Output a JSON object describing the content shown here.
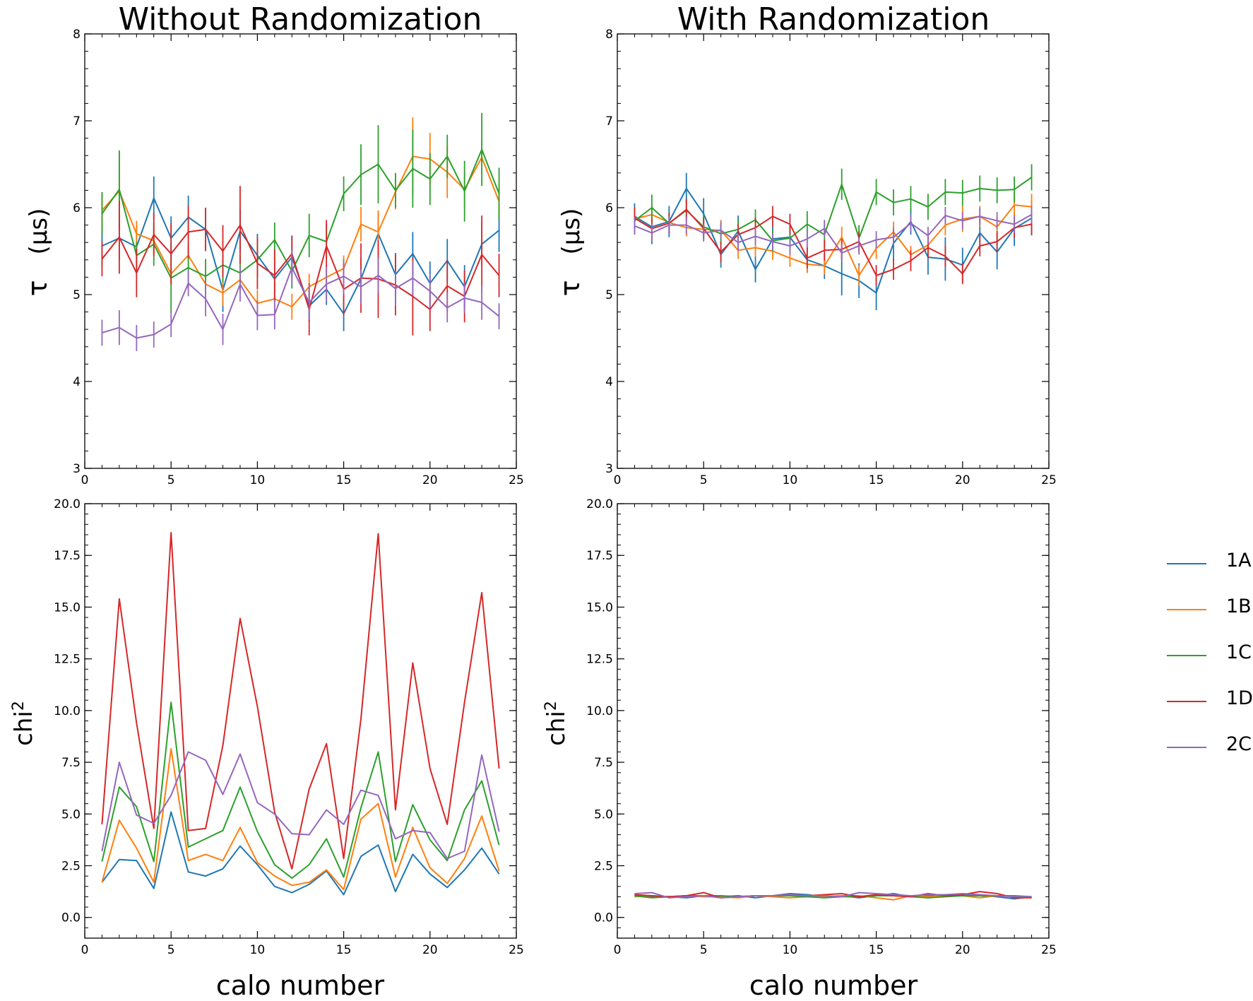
{
  "figure": {
    "colors": {
      "1A": "#1f77b4",
      "1B": "#ff7f0e",
      "1C": "#2ca02c",
      "1D": "#d62728",
      "2C": "#9467bd"
    },
    "legend": {
      "placement": "right",
      "entries": [
        "1A",
        "1B",
        "1C",
        "1D",
        "2C"
      ]
    }
  },
  "chart_data": [
    {
      "type": "line",
      "title": "Without Randomization",
      "xlabel": "",
      "ylabel_symbol": "τ",
      "ylabel_unit": "(μs)",
      "xlim": [
        0,
        25
      ],
      "ylim": [
        3,
        8
      ],
      "xticks": [
        "0",
        "5",
        "10",
        "15",
        "20",
        "25"
      ],
      "yticks": [
        "3",
        "4",
        "5",
        "6",
        "7",
        "8"
      ],
      "x": [
        1,
        2,
        3,
        4,
        5,
        6,
        7,
        8,
        9,
        10,
        11,
        12,
        13,
        14,
        15,
        16,
        17,
        18,
        19,
        20,
        21,
        22,
        23,
        24
      ],
      "series": [
        {
          "name": "1A",
          "values": [
            5.56,
            5.65,
            5.55,
            6.11,
            5.65,
            5.89,
            5.75,
            5.05,
            5.73,
            5.45,
            5.18,
            5.43,
            4.87,
            5.06,
            4.78,
            5.18,
            5.7,
            5.23,
            5.47,
            5.13,
            5.39,
            5.09,
            5.58,
            5.74
          ],
          "errors": [
            0.23,
            0.25,
            0.25,
            0.25,
            0.25,
            0.25,
            0.25,
            0.25,
            0.25,
            0.25,
            0.25,
            0.25,
            0.18,
            0.18,
            0.2,
            0.25,
            0.25,
            0.25,
            0.25,
            0.25,
            0.25,
            0.25,
            0.25,
            0.25
          ]
        },
        {
          "name": "1B",
          "values": [
            5.97,
            6.19,
            5.7,
            5.62,
            5.24,
            5.45,
            5.12,
            5.02,
            5.17,
            4.9,
            4.95,
            4.86,
            5.09,
            5.2,
            5.3,
            5.81,
            5.72,
            6.18,
            6.59,
            6.56,
            6.41,
            6.21,
            6.58,
            6.07
          ],
          "errors": [
            0.2,
            0.45,
            0.15,
            0.15,
            0.15,
            0.15,
            0.15,
            0.15,
            0.15,
            0.15,
            0.15,
            0.15,
            0.15,
            0.15,
            0.15,
            0.2,
            0.25,
            0.2,
            0.45,
            0.3,
            0.3,
            0.2,
            0.2,
            0.2
          ]
        },
        {
          "name": "1C",
          "values": [
            5.93,
            6.21,
            5.45,
            5.58,
            5.19,
            5.31,
            5.21,
            5.34,
            5.25,
            5.4,
            5.63,
            5.27,
            5.68,
            5.61,
            6.16,
            6.38,
            6.5,
            6.2,
            6.45,
            6.33,
            6.59,
            6.19,
            6.67,
            6.16
          ],
          "errors": [
            0.25,
            0.45,
            0.15,
            0.25,
            0.4,
            0.25,
            0.2,
            0.2,
            0.2,
            0.2,
            0.2,
            0.2,
            0.25,
            0.2,
            0.2,
            0.35,
            0.45,
            0.2,
            0.45,
            0.3,
            0.25,
            0.35,
            0.42,
            0.3
          ]
        },
        {
          "name": "1D",
          "values": [
            5.41,
            5.66,
            5.25,
            5.69,
            5.47,
            5.72,
            5.75,
            5.5,
            5.8,
            5.36,
            5.22,
            5.47,
            4.83,
            5.56,
            5.06,
            5.19,
            5.18,
            5.11,
            4.98,
            4.83,
            5.1,
            4.98,
            5.46,
            5.22
          ],
          "errors": [
            0.2,
            0.42,
            0.28,
            0.25,
            0.35,
            0.3,
            0.25,
            0.3,
            0.45,
            0.3,
            0.3,
            0.2,
            0.3,
            0.3,
            0.3,
            0.4,
            0.45,
            0.35,
            0.45,
            0.25,
            0.3,
            0.3,
            0.45,
            0.25
          ]
        },
        {
          "name": "2C",
          "values": [
            4.56,
            4.62,
            4.5,
            4.54,
            4.66,
            5.13,
            4.95,
            4.6,
            5.12,
            4.76,
            4.77,
            5.31,
            4.91,
            5.12,
            5.21,
            5.09,
            5.22,
            5.07,
            5.19,
            5.04,
            4.85,
            4.96,
            4.91,
            4.75
          ],
          "errors": [
            0.15,
            0.2,
            0.15,
            0.15,
            0.15,
            0.15,
            0.2,
            0.18,
            0.2,
            0.17,
            0.17,
            0.2,
            0.2,
            0.2,
            0.2,
            0.2,
            0.2,
            0.2,
            0.2,
            0.2,
            0.17,
            0.17,
            0.2,
            0.15
          ]
        }
      ]
    },
    {
      "type": "line",
      "title": "With Randomization",
      "xlabel": "",
      "ylabel_symbol": "τ",
      "ylabel_unit": "(μs)",
      "xlim": [
        0,
        25
      ],
      "ylim": [
        3,
        8
      ],
      "xticks": [
        "0",
        "5",
        "10",
        "15",
        "20",
        "25"
      ],
      "yticks": [
        "3",
        "4",
        "5",
        "6",
        "7",
        "8"
      ],
      "x": [
        1,
        2,
        3,
        4,
        5,
        6,
        7,
        8,
        9,
        10,
        11,
        12,
        13,
        14,
        15,
        16,
        17,
        18,
        19,
        20,
        21,
        22,
        23,
        24
      ],
      "series": [
        {
          "name": "1A",
          "values": [
            5.9,
            5.78,
            5.84,
            6.22,
            5.93,
            5.46,
            5.73,
            5.29,
            5.64,
            5.66,
            5.4,
            5.33,
            5.24,
            5.16,
            5.02,
            5.59,
            5.84,
            5.43,
            5.41,
            5.34,
            5.71,
            5.49,
            5.76,
            5.88
          ],
          "errors": [
            0.15,
            0.2,
            0.18,
            0.18,
            0.18,
            0.15,
            0.18,
            0.15,
            0.15,
            0.15,
            0.15,
            0.15,
            0.25,
            0.2,
            0.2,
            0.2,
            0.15,
            0.2,
            0.25,
            0.2,
            0.2,
            0.2,
            0.2,
            0.2
          ]
        },
        {
          "name": "1B",
          "values": [
            5.87,
            5.92,
            5.83,
            5.77,
            5.75,
            5.74,
            5.51,
            5.54,
            5.5,
            5.42,
            5.35,
            5.33,
            5.66,
            5.22,
            5.53,
            5.72,
            5.46,
            5.57,
            5.8,
            5.87,
            5.9,
            5.78,
            6.03,
            6.01
          ],
          "errors": [
            0.1,
            0.1,
            0.1,
            0.1,
            0.1,
            0.12,
            0.1,
            0.1,
            0.1,
            0.1,
            0.1,
            0.1,
            0.12,
            0.12,
            0.12,
            0.12,
            0.1,
            0.1,
            0.12,
            0.15,
            0.12,
            0.12,
            0.15,
            0.15
          ]
        },
        {
          "name": "1C",
          "values": [
            5.85,
            6.0,
            5.82,
            5.97,
            5.78,
            5.7,
            5.75,
            5.86,
            5.62,
            5.65,
            5.81,
            5.69,
            6.27,
            5.65,
            6.18,
            6.06,
            6.1,
            6.01,
            6.18,
            6.17,
            6.22,
            6.2,
            6.21,
            6.35
          ],
          "errors": [
            0.15,
            0.15,
            0.12,
            0.12,
            0.15,
            0.12,
            0.12,
            0.12,
            0.12,
            0.15,
            0.15,
            0.15,
            0.18,
            0.15,
            0.15,
            0.15,
            0.15,
            0.15,
            0.15,
            0.15,
            0.15,
            0.15,
            0.15,
            0.15
          ]
        },
        {
          "name": "1D",
          "values": [
            5.88,
            5.76,
            5.82,
            5.98,
            5.76,
            5.49,
            5.69,
            5.77,
            5.9,
            5.81,
            5.42,
            5.51,
            5.52,
            5.61,
            5.22,
            5.29,
            5.39,
            5.54,
            5.44,
            5.24,
            5.56,
            5.61,
            5.77,
            5.81
          ],
          "errors": [
            0.12,
            0.12,
            0.12,
            0.12,
            0.12,
            0.12,
            0.12,
            0.12,
            0.12,
            0.12,
            0.12,
            0.12,
            0.12,
            0.12,
            0.12,
            0.12,
            0.12,
            0.12,
            0.12,
            0.12,
            0.12,
            0.12,
            0.12,
            0.12
          ]
        },
        {
          "name": "2C",
          "values": [
            5.79,
            5.71,
            5.8,
            5.8,
            5.71,
            5.74,
            5.6,
            5.67,
            5.61,
            5.56,
            5.64,
            5.76,
            5.48,
            5.56,
            5.63,
            5.66,
            5.82,
            5.68,
            5.91,
            5.85,
            5.9,
            5.85,
            5.81,
            5.92
          ],
          "errors": [
            0.1,
            0.1,
            0.1,
            0.1,
            0.1,
            0.1,
            0.1,
            0.1,
            0.1,
            0.1,
            0.1,
            0.1,
            0.1,
            0.1,
            0.1,
            0.1,
            0.1,
            0.1,
            0.1,
            0.1,
            0.1,
            0.1,
            0.1,
            0.1
          ]
        }
      ]
    },
    {
      "type": "line",
      "title": "",
      "xlabel": "calo number",
      "ylabel_text": "chi",
      "ylabel_sup": "2",
      "xlim": [
        0,
        25
      ],
      "ylim": [
        -1,
        20
      ],
      "xticks": [
        "0",
        "5",
        "10",
        "15",
        "20",
        "25"
      ],
      "yticks": [
        "0.0",
        "2.5",
        "5.0",
        "7.5",
        "10.0",
        "12.5",
        "15.0",
        "17.5",
        "20.0"
      ],
      "x": [
        1,
        2,
        3,
        4,
        5,
        6,
        7,
        8,
        9,
        10,
        11,
        12,
        13,
        14,
        15,
        16,
        17,
        18,
        19,
        20,
        21,
        22,
        23,
        24
      ],
      "series": [
        {
          "name": "1A",
          "values": [
            1.7,
            2.8,
            2.75,
            1.4,
            5.1,
            2.2,
            2.0,
            2.35,
            3.45,
            2.55,
            1.5,
            1.2,
            1.6,
            2.25,
            1.1,
            2.95,
            3.5,
            1.25,
            3.05,
            2.1,
            1.45,
            2.3,
            3.35,
            2.1
          ]
        },
        {
          "name": "1B",
          "values": [
            1.7,
            4.7,
            3.35,
            1.7,
            8.15,
            2.75,
            3.05,
            2.75,
            4.35,
            2.65,
            2.0,
            1.55,
            1.7,
            2.3,
            1.35,
            4.75,
            5.5,
            1.95,
            4.35,
            2.4,
            1.65,
            2.85,
            4.9,
            2.25
          ]
        },
        {
          "name": "1C",
          "values": [
            2.7,
            6.3,
            5.35,
            2.7,
            10.4,
            3.4,
            3.8,
            4.2,
            6.3,
            4.15,
            2.55,
            1.9,
            2.55,
            3.8,
            1.95,
            5.3,
            8.0,
            2.7,
            5.45,
            3.75,
            2.75,
            5.2,
            6.6,
            3.5
          ]
        },
        {
          "name": "1D",
          "values": [
            4.5,
            15.4,
            9.4,
            4.3,
            18.6,
            4.2,
            4.3,
            8.3,
            14.45,
            10.2,
            5.1,
            2.35,
            6.2,
            8.4,
            2.85,
            9.6,
            18.55,
            5.2,
            12.3,
            7.2,
            4.5,
            10.4,
            15.7,
            7.2
          ]
        },
        {
          "name": "2C",
          "values": [
            3.2,
            7.5,
            4.95,
            4.55,
            5.9,
            8.0,
            7.6,
            5.95,
            7.9,
            5.55,
            5.0,
            4.05,
            4.0,
            5.2,
            4.5,
            6.15,
            5.9,
            3.8,
            4.2,
            4.1,
            2.85,
            3.2,
            7.85,
            4.15
          ]
        }
      ]
    },
    {
      "type": "line",
      "title": "",
      "xlabel": "calo number",
      "ylabel_text": "chi",
      "ylabel_sup": "2",
      "xlim": [
        0,
        25
      ],
      "ylim": [
        -1,
        20
      ],
      "xticks": [
        "0",
        "5",
        "10",
        "15",
        "20",
        "25"
      ],
      "yticks": [
        "0.0",
        "2.5",
        "5.0",
        "7.5",
        "10.0",
        "12.5",
        "15.0",
        "17.5",
        "20.0"
      ],
      "x": [
        1,
        2,
        3,
        4,
        5,
        6,
        7,
        8,
        9,
        10,
        11,
        12,
        13,
        14,
        15,
        16,
        17,
        18,
        19,
        20,
        21,
        22,
        23,
        24
      ],
      "series": [
        {
          "name": "1A",
          "values": [
            1.1,
            1.0,
            1.0,
            0.95,
            1.05,
            1.0,
            1.05,
            0.95,
            1.05,
            1.15,
            1.1,
            1.0,
            1.05,
            0.95,
            1.05,
            1.15,
            1.0,
            1.05,
            1.05,
            1.1,
            1.05,
            1.0,
            0.9,
            1.0
          ]
        },
        {
          "name": "1B",
          "values": [
            1.0,
            1.05,
            1.0,
            1.05,
            1.0,
            1.0,
            0.95,
            1.05,
            1.0,
            0.95,
            1.0,
            1.0,
            1.05,
            1.05,
            0.95,
            0.85,
            1.05,
            1.0,
            1.05,
            1.05,
            0.95,
            1.05,
            1.0,
            0.95
          ]
        },
        {
          "name": "1C",
          "values": [
            1.05,
            0.95,
            1.0,
            1.05,
            1.05,
            1.05,
            1.0,
            1.05,
            1.05,
            1.05,
            1.0,
            0.95,
            1.0,
            1.0,
            1.05,
            1.05,
            1.0,
            0.95,
            1.0,
            1.05,
            1.05,
            1.05,
            1.05,
            1.0
          ]
        },
        {
          "name": "1D",
          "values": [
            1.1,
            1.05,
            1.0,
            1.05,
            1.2,
            0.95,
            1.0,
            1.05,
            1.05,
            1.1,
            1.05,
            1.1,
            1.15,
            1.0,
            1.1,
            1.05,
            1.0,
            1.15,
            1.05,
            1.1,
            1.25,
            1.15,
            0.95,
            0.95
          ]
        },
        {
          "name": "2C",
          "values": [
            1.15,
            1.2,
            0.95,
            1.0,
            1.05,
            0.95,
            1.0,
            1.05,
            1.05,
            1.1,
            1.05,
            1.05,
            1.0,
            1.2,
            1.15,
            1.1,
            1.05,
            1.1,
            1.1,
            1.15,
            1.1,
            1.05,
            1.0,
            1.0
          ]
        }
      ]
    }
  ]
}
